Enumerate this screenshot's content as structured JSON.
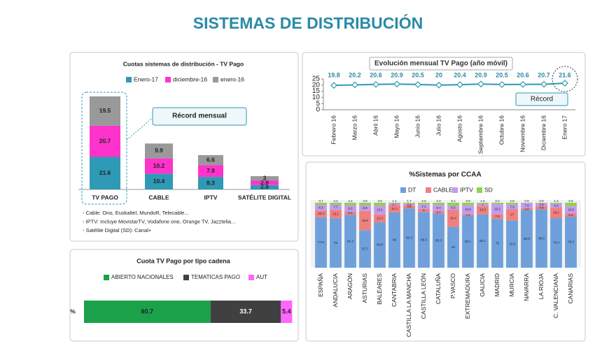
{
  "title": "SISTEMAS DE DISTRIBUCIÓN",
  "chart_data": [
    {
      "type": "stacked-bar",
      "title": "Cuotas sistemas de distribución - TV Pago",
      "categories": [
        "TV PAGO",
        "CABLE",
        "IPTV",
        "SATÉLITE DIGITAL"
      ],
      "series": [
        {
          "name": "Enero-17",
          "color": "#2e9ab5",
          "values": [
            21.6,
            10.4,
            8.3,
            2.9
          ]
        },
        {
          "name": "diciembre-16",
          "color": "#ff33cc",
          "values": [
            20.7,
            10.2,
            7.9,
            2.9
          ]
        },
        {
          "name": "enero-16",
          "color": "#999999",
          "values": [
            19.5,
            9.9,
            6.6,
            3
          ]
        }
      ],
      "ylim": [
        0,
        65
      ],
      "annotation": "Récord mensual",
      "notes": [
        "- Cable: Ono, Euskaltel, MundoR, Telecable...",
        "- IPTV: Incluye MovistarTV, Vodafone one, Orange TV, Jazztelia...",
        "- Satélite Digital (SD): Canal+"
      ]
    },
    {
      "type": "line",
      "title": "Evolución mensual TV Pago (año móvil)",
      "categories": [
        "Febrero 16",
        "Marzo 16",
        "Abril 16",
        "Mayo 16",
        "Junio 16",
        "Julio 16",
        "Agosto 16",
        "Septiembre 16",
        "Octubre 16",
        "Noviembre 16",
        "Diciembre 16",
        "Enero 17"
      ],
      "values": [
        19.8,
        20.2,
        20.6,
        20.9,
        20.5,
        20,
        20.4,
        20.9,
        20.5,
        20.6,
        20.7,
        21.6
      ],
      "color": "#2e9ab5",
      "ylim": [
        0,
        25
      ],
      "yticks": [
        0,
        5,
        10,
        15,
        20,
        25
      ],
      "annotation": "Récord"
    },
    {
      "type": "stacked-bar-100",
      "title": "%Sistemas por CCAA",
      "categories": [
        "ESPAÑA",
        "ANDALUCIA",
        "ARAGÓN",
        "ASTURIAS",
        "BALEARES",
        "CANTABRIA",
        "CASTILLA LA MANCHA",
        "CASTILLA LEÓN",
        "CATALUÑA",
        "P.VASCO",
        "EXTREMADURA",
        "GALICIA",
        "MADRID",
        "MURCIA",
        "NAVARRA",
        "LA RIOJA",
        "C. VALENCIANA",
        "CANARIAS"
      ],
      "series": [
        {
          "name": "DT",
          "color": "#6fa0dc",
          "values": [
            77.6,
            76,
            81.3,
            57.7,
            69.8,
            85,
            91.3,
            85.3,
            83.3,
            63,
            80.1,
            82.1,
            75,
            72.8,
            88.8,
            89.8,
            76.3,
            78.5
          ]
        },
        {
          "name": "CABLE",
          "color": "#f08080",
          "values": [
            10.4,
            13.1,
            5.1,
            29.6,
            12.3,
            11.2,
            4.5,
            5,
            3.7,
            26.4,
            2.4,
            13.3,
            7.6,
            17,
            2.8,
            4.8,
            16.1,
            5.2
          ]
        },
        {
          "name": "IPTV",
          "color": "#c39bf0",
          "values": [
            8.3,
            7.7,
            9.2,
            8.8,
            13.1,
            2.7,
            2.5,
            7.1,
            9.7,
            5.5,
            13.6,
            3,
            15.2,
            7.3,
            7.9,
            4.6,
            6.3,
            10.8
          ]
        },
        {
          "name": "SD",
          "color": "#92d050",
          "values": [
            3.7,
            3.2,
            4.4,
            3.9,
            4.8,
            1.1,
            1.7,
            2.6,
            3.3,
            5.1,
            3.9,
            1.6,
            2.2,
            2.9,
            0.5,
            0.8,
            1.3,
            5.5
          ]
        }
      ],
      "ylim": [
        0,
        100
      ]
    },
    {
      "type": "stacked-hbar",
      "title": "Cuota TV Pago por tipo cadena",
      "categories": [
        "%"
      ],
      "series": [
        {
          "name": "ABIERTO NACIONALES",
          "color": "#1aa14a",
          "values": [
            60.7
          ]
        },
        {
          "name": "TEMATICAS PAGO",
          "color": "#404040",
          "values": [
            33.7
          ]
        },
        {
          "name": "AUT",
          "color": "#ff66ff",
          "values": [
            5.4
          ]
        }
      ],
      "xlim": [
        0,
        100
      ]
    }
  ]
}
